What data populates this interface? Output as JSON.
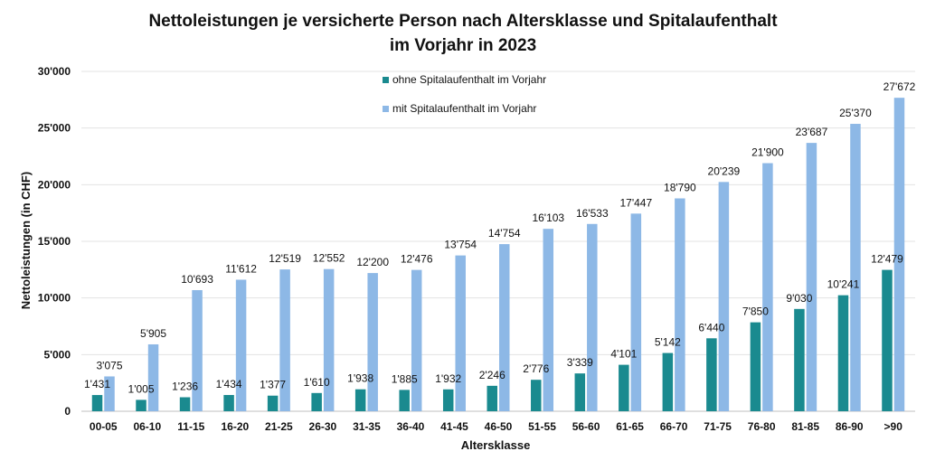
{
  "chart_data": {
    "type": "bar",
    "title": "Nettoleistungen je versicherte Person nach Altersklasse und Spitalaufenthalt",
    "subtitle": "im Vorjahr in 2023",
    "xlabel": "Altersklasse",
    "ylabel": "Nettoleistungen (in CHF)",
    "ylim": [
      0,
      30000
    ],
    "yticks": [
      "0",
      "5'000",
      "10'000",
      "15'000",
      "20'000",
      "25'000",
      "30'000"
    ],
    "categories": [
      "00-05",
      "06-10",
      "11-15",
      "16-20",
      "21-25",
      "26-30",
      "31-35",
      "36-40",
      "41-45",
      "46-50",
      "51-55",
      "56-60",
      "61-65",
      "66-70",
      "71-75",
      "76-80",
      "81-85",
      "86-90",
      ">90"
    ],
    "series": [
      {
        "name": "ohne Spitalaufenthalt im Vorjahr",
        "color": "#1a8a8f",
        "values": [
          1431,
          1005,
          1236,
          1434,
          1377,
          1610,
          1938,
          1885,
          1932,
          2246,
          2776,
          3339,
          4101,
          5142,
          6440,
          7850,
          9030,
          10241,
          12479
        ],
        "labels": [
          "1'431",
          "1'005",
          "1'236",
          "1'434",
          "1'377",
          "1'610",
          "1'938",
          "1'885",
          "1'932",
          "2'246",
          "2'776",
          "3'339",
          "4'101",
          "5'142",
          "6'440",
          "7'850",
          "9'030",
          "10'241",
          "12'479"
        ]
      },
      {
        "name": "mit Spitalaufenthalt im Vorjahr",
        "color": "#8db8e6",
        "values": [
          3075,
          5905,
          10693,
          11612,
          12519,
          12552,
          12200,
          12476,
          13754,
          14754,
          16103,
          16533,
          17447,
          18790,
          20239,
          21900,
          23687,
          25370,
          27672
        ],
        "labels": [
          "3'075",
          "5'905",
          "10'693",
          "11'612",
          "12'519",
          "12'552",
          "12'200",
          "12'476",
          "13'754",
          "14'754",
          "16'103",
          "16'533",
          "17'447",
          "18'790",
          "20'239",
          "21'900",
          "23'687",
          "25'370",
          "27'672"
        ]
      }
    ],
    "grid": true,
    "legend": "top-center"
  }
}
